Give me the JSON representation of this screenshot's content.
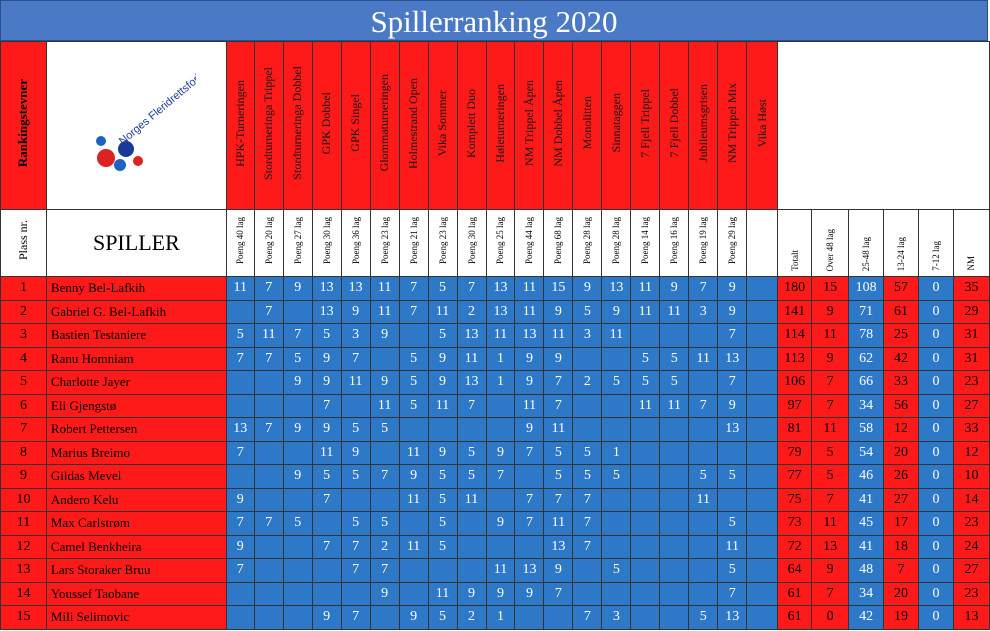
{
  "title": "Spillerranking 2020",
  "header": {
    "rank_label": "Rankingstevner",
    "logo_text": "Norges Fleridrettsforbund // Petanque",
    "plass_label": "Plass nr.",
    "spiller_label": "SPILLER"
  },
  "events": [
    {
      "name": "HPK-Turneringen",
      "pts": "Poeng 40 lag"
    },
    {
      "name": "Stordturneringa Trippel",
      "pts": "Poeng 20 lag"
    },
    {
      "name": "Stordturneringa Dobbel",
      "pts": "Poeng 27 lag"
    },
    {
      "name": "GPK Dobbel",
      "pts": "Poeng 30 lag"
    },
    {
      "name": "GPK Singel",
      "pts": "Poeng 36 lag"
    },
    {
      "name": "Glommaturneringen",
      "pts": "Poeng 23 lag"
    },
    {
      "name": "Holmestrand Open",
      "pts": "Poeng 21 lag"
    },
    {
      "name": "Vika Sommer",
      "pts": "Poeng 23 lag"
    },
    {
      "name": "Komplett Duo",
      "pts": "Poeng 30 lag"
    },
    {
      "name": "Høleturneringen",
      "pts": "Poeng 25 lag"
    },
    {
      "name": "NM Trippel Åpen",
      "pts": "Poeng 44 lag"
    },
    {
      "name": "NM Dobbel Åpen",
      "pts": "Poeng 68 lag"
    },
    {
      "name": "Monolitten",
      "pts": "Poeng 28 lag"
    },
    {
      "name": "Sinnataggen",
      "pts": "Poeng 28 lag"
    },
    {
      "name": "7 Fjell Trippel",
      "pts": "Poeng 14 lag"
    },
    {
      "name": "7 Fjell Dobbel",
      "pts": "Poeng 16 lag"
    },
    {
      "name": "Jubileumsgrisen",
      "pts": "Poeng 19 lag"
    },
    {
      "name": "NM Trippel Mix",
      "pts": "Poeng 29 lag"
    },
    {
      "name": "Vika Høst",
      "pts": ""
    }
  ],
  "summary_headers": [
    "Totalt",
    "Over 48 lag",
    "25-48 lag",
    "13-24 lag",
    "7-12 lag",
    "NM"
  ],
  "players": [
    {
      "rank": "1",
      "name": "Benny Bel-Lafkih",
      "scores": [
        "11",
        "7",
        "9",
        "13",
        "13",
        "11",
        "7",
        "5",
        "7",
        "13",
        "11",
        "15",
        "9",
        "13",
        "11",
        "9",
        "7",
        "9",
        ""
      ],
      "totals": [
        "180",
        "15",
        "108",
        "57",
        "0",
        "35"
      ]
    },
    {
      "rank": "2",
      "name": "Gabriel G. Bel-Lafkih",
      "scores": [
        "",
        "7",
        "",
        "13",
        "9",
        "11",
        "7",
        "11",
        "2",
        "13",
        "11",
        "9",
        "5",
        "9",
        "11",
        "11",
        "3",
        "9",
        ""
      ],
      "totals": [
        "141",
        "9",
        "71",
        "61",
        "0",
        "29"
      ]
    },
    {
      "rank": "3",
      "name": "Bastien Testaniere",
      "scores": [
        "5",
        "11",
        "7",
        "5",
        "3",
        "9",
        "",
        "5",
        "13",
        "11",
        "13",
        "11",
        "3",
        "11",
        "",
        "",
        "",
        "7",
        ""
      ],
      "totals": [
        "114",
        "11",
        "78",
        "25",
        "0",
        "31"
      ]
    },
    {
      "rank": "4",
      "name": "Ranu Homniam",
      "scores": [
        "7",
        "7",
        "5",
        "9",
        "7",
        "",
        "5",
        "9",
        "11",
        "1",
        "9",
        "9",
        "",
        "",
        "5",
        "5",
        "11",
        "13",
        ""
      ],
      "totals": [
        "113",
        "9",
        "62",
        "42",
        "0",
        "31"
      ]
    },
    {
      "rank": "5",
      "name": "Charlotte Jayer",
      "scores": [
        "",
        "",
        "9",
        "9",
        "11",
        "9",
        "5",
        "9",
        "13",
        "1",
        "9",
        "7",
        "2",
        "5",
        "5",
        "5",
        "",
        "7",
        ""
      ],
      "totals": [
        "106",
        "7",
        "66",
        "33",
        "0",
        "23"
      ]
    },
    {
      "rank": "6",
      "name": "Eli Gjengstø",
      "scores": [
        "",
        "",
        "",
        "7",
        "",
        "11",
        "5",
        "11",
        "7",
        "",
        "11",
        "7",
        "",
        "",
        "11",
        "11",
        "7",
        "9",
        ""
      ],
      "totals": [
        "97",
        "7",
        "34",
        "56",
        "0",
        "27"
      ]
    },
    {
      "rank": "7",
      "name": "Robert Pettersen",
      "scores": [
        "13",
        "7",
        "9",
        "9",
        "5",
        "5",
        "",
        "",
        "",
        "",
        "9",
        "11",
        "",
        "",
        "",
        "",
        "",
        "13",
        ""
      ],
      "totals": [
        "81",
        "11",
        "58",
        "12",
        "0",
        "33"
      ]
    },
    {
      "rank": "8",
      "name": "Marius Breimo",
      "scores": [
        "7",
        "",
        "",
        "11",
        "9",
        "",
        "11",
        "9",
        "5",
        "9",
        "7",
        "5",
        "5",
        "1",
        "",
        "",
        "",
        "",
        ""
      ],
      "totals": [
        "79",
        "5",
        "54",
        "20",
        "0",
        "12"
      ]
    },
    {
      "rank": "9",
      "name": "Gildas Mevel",
      "scores": [
        "",
        "",
        "9",
        "5",
        "5",
        "7",
        "9",
        "5",
        "5",
        "7",
        "",
        "5",
        "5",
        "5",
        "",
        "",
        "5",
        "5",
        ""
      ],
      "totals": [
        "77",
        "5",
        "46",
        "26",
        "0",
        "10"
      ]
    },
    {
      "rank": "10",
      "name": "Andero Kelu",
      "scores": [
        "9",
        "",
        "",
        "7",
        "",
        "",
        "11",
        "5",
        "11",
        "",
        "7",
        "7",
        "7",
        "",
        "",
        "",
        "11",
        "",
        ""
      ],
      "totals": [
        "75",
        "7",
        "41",
        "27",
        "0",
        "14"
      ]
    },
    {
      "rank": "11",
      "name": "Max Carlstrøm",
      "scores": [
        "7",
        "7",
        "5",
        "",
        "5",
        "5",
        "",
        "5",
        "",
        "9",
        "7",
        "11",
        "7",
        "",
        "",
        "",
        "",
        "5",
        ""
      ],
      "totals": [
        "73",
        "11",
        "45",
        "17",
        "0",
        "23"
      ]
    },
    {
      "rank": "12",
      "name": "Camel Benkheira",
      "scores": [
        "9",
        "",
        "",
        "7",
        "7",
        "2",
        "11",
        "5",
        "",
        "",
        "",
        "13",
        "7",
        "",
        "",
        "",
        "",
        "11",
        ""
      ],
      "totals": [
        "72",
        "13",
        "41",
        "18",
        "0",
        "24"
      ]
    },
    {
      "rank": "13",
      "name": "Lars Storaker Bruu",
      "scores": [
        "7",
        "",
        "",
        "",
        "7",
        "7",
        "",
        "",
        "",
        "11",
        "13",
        "9",
        "",
        "5",
        "",
        "",
        "",
        "5",
        ""
      ],
      "totals": [
        "64",
        "9",
        "48",
        "7",
        "0",
        "27"
      ]
    },
    {
      "rank": "14",
      "name": "Youssef Taobane",
      "scores": [
        "",
        "",
        "",
        "",
        "",
        "9",
        "",
        "11",
        "9",
        "9",
        "9",
        "7",
        "",
        "",
        "",
        "",
        "",
        "7",
        ""
      ],
      "totals": [
        "61",
        "7",
        "34",
        "20",
        "0",
        "23"
      ]
    },
    {
      "rank": "15",
      "name": "Mili Selimovic",
      "scores": [
        "",
        "",
        "",
        "9",
        "7",
        "",
        "9",
        "5",
        "2",
        "1",
        "",
        "",
        "7",
        "3",
        "",
        "",
        "5",
        "13",
        ""
      ],
      "totals": [
        "61",
        "0",
        "42",
        "19",
        "0",
        "13"
      ]
    }
  ],
  "colors": {
    "title_bg": "#4a7ac6",
    "red": "#ff1a1a",
    "blue": "#2e78c8"
  }
}
